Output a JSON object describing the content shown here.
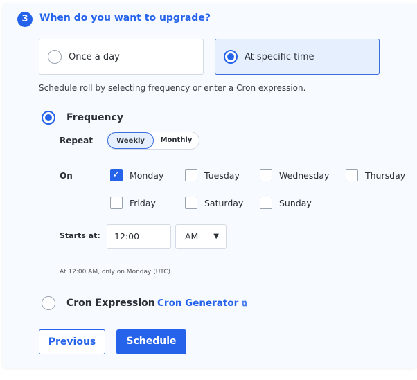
{
  "step": {
    "number": "3",
    "title": "When do you want to upgrade?"
  },
  "options": [
    {
      "label": "Once a day",
      "selected": false
    },
    {
      "label": "At specific time",
      "selected": true
    }
  ],
  "description": "Schedule roll by selecting frequency or enter a Cron expression.",
  "frequency": {
    "label": "Frequency",
    "selected": true
  },
  "repeat": {
    "label": "Repeat",
    "options": [
      "Weekly",
      "Monthly"
    ],
    "selected": "Weekly"
  },
  "on": {
    "label": "On",
    "days": [
      {
        "label": "Monday",
        "checked": true
      },
      {
        "label": "Tuesday",
        "checked": false
      },
      {
        "label": "Wednesday",
        "checked": false
      },
      {
        "label": "Thursday",
        "checked": false
      },
      {
        "label": "Friday",
        "checked": false
      },
      {
        "label": "Saturday",
        "checked": false
      },
      {
        "label": "Sunday",
        "checked": false
      }
    ]
  },
  "starts": {
    "label": "Starts at:",
    "time": "12:00",
    "ampm": "AM"
  },
  "summary": "At 12:00 AM, only on Monday (UTC)",
  "cron": {
    "label": "Cron Expression",
    "link": "Cron Generator",
    "selected": false
  },
  "buttons": {
    "previous": "Previous",
    "schedule": "Schedule"
  },
  "colors": {
    "accent": "#2563eb"
  }
}
